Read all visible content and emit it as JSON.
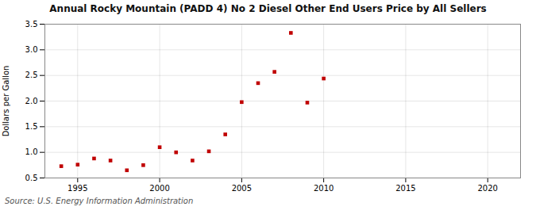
{
  "chart_data": {
    "type": "scatter",
    "title": "Annual Rocky Mountain (PADD 4) No 2 Diesel Other End Users Price by All Sellers",
    "ylabel": "Dollars per Gallon",
    "source": "Source: U.S. Energy Information Administration",
    "x": [
      1994,
      1995,
      1996,
      1997,
      1998,
      1999,
      2000,
      2001,
      2002,
      2003,
      2004,
      2005,
      2006,
      2007,
      2008,
      2009,
      2010
    ],
    "values": [
      0.73,
      0.76,
      0.88,
      0.84,
      0.65,
      0.75,
      1.1,
      1.0,
      0.84,
      1.02,
      1.35,
      1.98,
      2.35,
      2.57,
      3.33,
      1.97,
      2.44
    ],
    "color": "#c00000",
    "marker": "square",
    "xlim": [
      1993,
      2022
    ],
    "xticks": [
      1995,
      2000,
      2005,
      2010,
      2015,
      2020
    ],
    "ylim": [
      0.5,
      3.5
    ],
    "yticks": [
      0.5,
      {
        "value": 1.0,
        "label": "1.0"
      },
      1.5,
      {
        "value": 2.0,
        "label": "2.0"
      },
      2.5,
      {
        "value": 3.0,
        "label": "3.0"
      },
      3.5
    ],
    "grid": true
  }
}
